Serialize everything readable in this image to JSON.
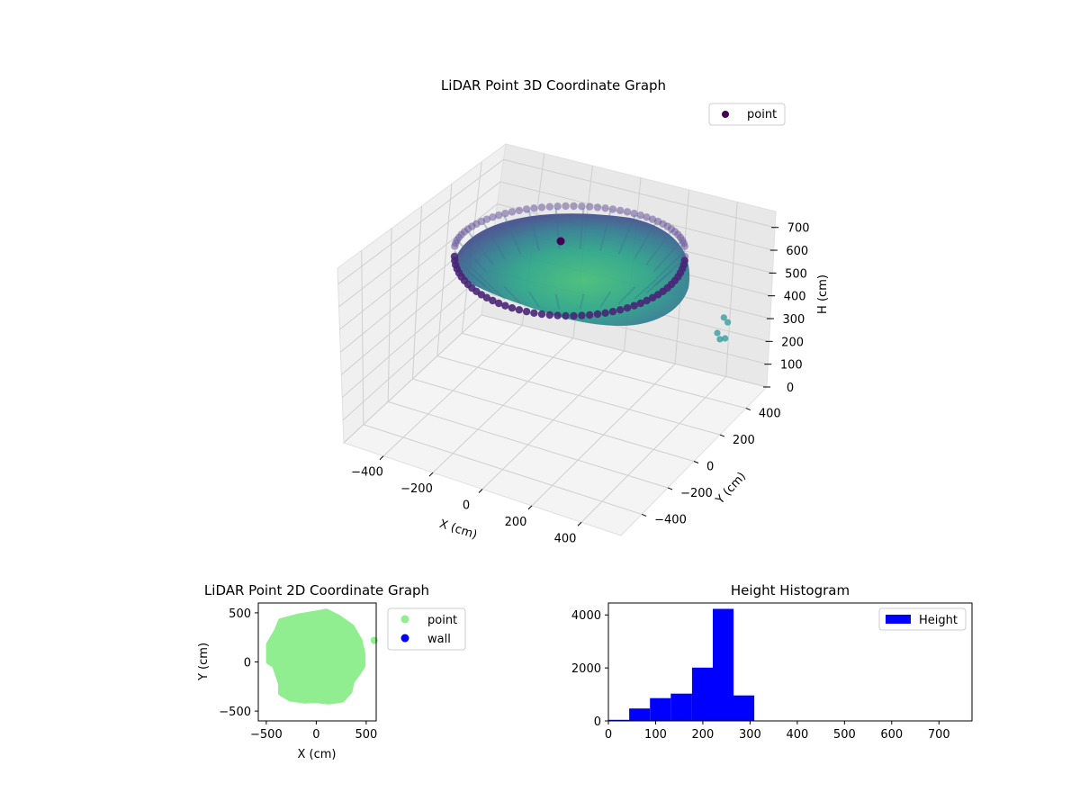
{
  "chart_data": [
    {
      "type": "scatter",
      "projection": "3d",
      "title": "LiDAR Point 3D Coordinate Graph",
      "xlabel": "X (cm)",
      "ylabel": "Y (cm)",
      "zlabel": "H (cm)",
      "xlim": [
        -560,
        560
      ],
      "ylim": [
        -560,
        560
      ],
      "zlim": [
        770,
        0
      ],
      "z_inverted": true,
      "xticks": [
        -400,
        -200,
        0,
        200,
        400
      ],
      "yticks": [
        -400,
        -200,
        0,
        200,
        400
      ],
      "zticks": [
        0,
        100,
        200,
        300,
        400,
        500,
        600,
        700
      ],
      "grid": true,
      "legend": {
        "position": "top-right",
        "entries": [
          "point"
        ]
      },
      "series": [
        {
          "name": "point",
          "colormap": "viridis",
          "color": "#440154",
          "shape": "bowl",
          "rim_radius": 500,
          "rim_height": 20,
          "bottom_height": 320,
          "outliers": [
            {
              "x": 560,
              "y": 230,
              "h": 260
            },
            {
              "x": 560,
              "y": 180,
              "h": 300
            },
            {
              "x": 560,
              "y": 260,
              "h": 300
            },
            {
              "x": 560,
              "y": 200,
              "h": 340
            },
            {
              "x": 560,
              "y": 240,
              "h": 360
            }
          ]
        }
      ]
    },
    {
      "type": "scatter",
      "title": "LiDAR Point 2D Coordinate Graph",
      "xlabel": "X (cm)",
      "ylabel": "Y (cm)",
      "xlim": [
        -580,
        600
      ],
      "ylim": [
        -600,
        600
      ],
      "xticks": [
        -500,
        0,
        500
      ],
      "yticks": [
        -500,
        0,
        500
      ],
      "legend": {
        "position": "outside-right",
        "entries": [
          "point",
          "wall"
        ]
      },
      "series": [
        {
          "name": "point",
          "color": "#90ee90",
          "boundary": [
            [
              -360,
              420
            ],
            [
              -180,
              470
            ],
            [
              0,
              500
            ],
            [
              100,
              520
            ],
            [
              220,
              460
            ],
            [
              360,
              360
            ],
            [
              440,
              220
            ],
            [
              470,
              80
            ],
            [
              470,
              -40
            ],
            [
              420,
              -120
            ],
            [
              360,
              -200
            ],
            [
              340,
              -300
            ],
            [
              260,
              -390
            ],
            [
              120,
              -410
            ],
            [
              0,
              -395
            ],
            [
              -120,
              -400
            ],
            [
              -260,
              -380
            ],
            [
              -360,
              -320
            ],
            [
              -360,
              -220
            ],
            [
              -420,
              -40
            ],
            [
              -480,
              0
            ],
            [
              -480,
              180
            ],
            [
              -400,
              320
            ]
          ],
          "outliers": [
            {
              "x": 580,
              "y": 220
            }
          ]
        },
        {
          "name": "wall",
          "color": "#0000ff",
          "points": []
        }
      ]
    },
    {
      "type": "bar",
      "title": "Height Histogram",
      "xlabel": "",
      "ylabel": "",
      "xlim": [
        0,
        770
      ],
      "ylim": [
        0,
        4450
      ],
      "xticks": [
        0,
        100,
        200,
        300,
        400,
        500,
        600,
        700
      ],
      "yticks": [
        0,
        2000,
        4000
      ],
      "legend": {
        "position": "top-right",
        "entries": [
          "Height"
        ]
      },
      "series": [
        {
          "name": "Height",
          "color": "#0000ff",
          "bins": [
            {
              "x0": 0,
              "x1": 44,
              "value": 40
            },
            {
              "x0": 44,
              "x1": 88,
              "value": 470
            },
            {
              "x0": 88,
              "x1": 132,
              "value": 860
            },
            {
              "x0": 132,
              "x1": 177,
              "value": 1030
            },
            {
              "x0": 177,
              "x1": 221,
              "value": 2010
            },
            {
              "x0": 221,
              "x1": 265,
              "value": 4230
            },
            {
              "x0": 265,
              "x1": 309,
              "value": 960
            },
            {
              "x0": 309,
              "x1": 353,
              "value": 0
            },
            {
              "x0": 353,
              "x1": 397,
              "value": 0
            },
            {
              "x0": 397,
              "x1": 441,
              "value": 0
            },
            {
              "x0": 441,
              "x1": 485,
              "value": 0
            },
            {
              "x0": 485,
              "x1": 530,
              "value": 0
            },
            {
              "x0": 530,
              "x1": 574,
              "value": 0
            },
            {
              "x0": 574,
              "x1": 618,
              "value": 0
            },
            {
              "x0": 618,
              "x1": 662,
              "value": 0
            },
            {
              "x0": 662,
              "x1": 706,
              "value": 0
            },
            {
              "x0": 706,
              "x1": 750,
              "value": 0
            },
            {
              "x0": 750,
              "x1": 770,
              "value": 5
            }
          ]
        }
      ]
    }
  ]
}
